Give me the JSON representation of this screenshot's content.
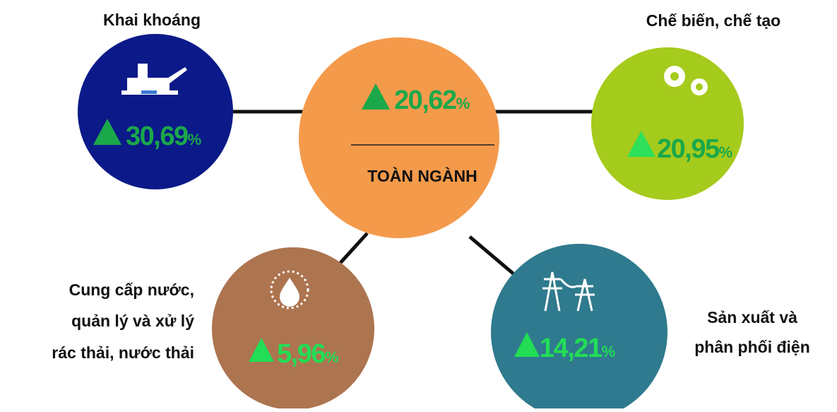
{
  "center": {
    "value": "20,62",
    "unit": "%",
    "label": "TOÀN NGÀNH"
  },
  "nodes": [
    {
      "label": [
        "Khai khoáng"
      ],
      "value": "30,69",
      "unit": "%"
    },
    {
      "label": [
        "Chế biến, chế tạo"
      ],
      "value": "20,95",
      "unit": "%"
    },
    {
      "label": [
        "Cung cấp nước,",
        "quản lý và xử lý",
        "rác thải, nước thải"
      ],
      "value": "5,96",
      "unit": "%"
    },
    {
      "label": [
        "Sản xuất và",
        "phân phối điện"
      ],
      "value": "14,21",
      "unit": "%"
    }
  ]
}
